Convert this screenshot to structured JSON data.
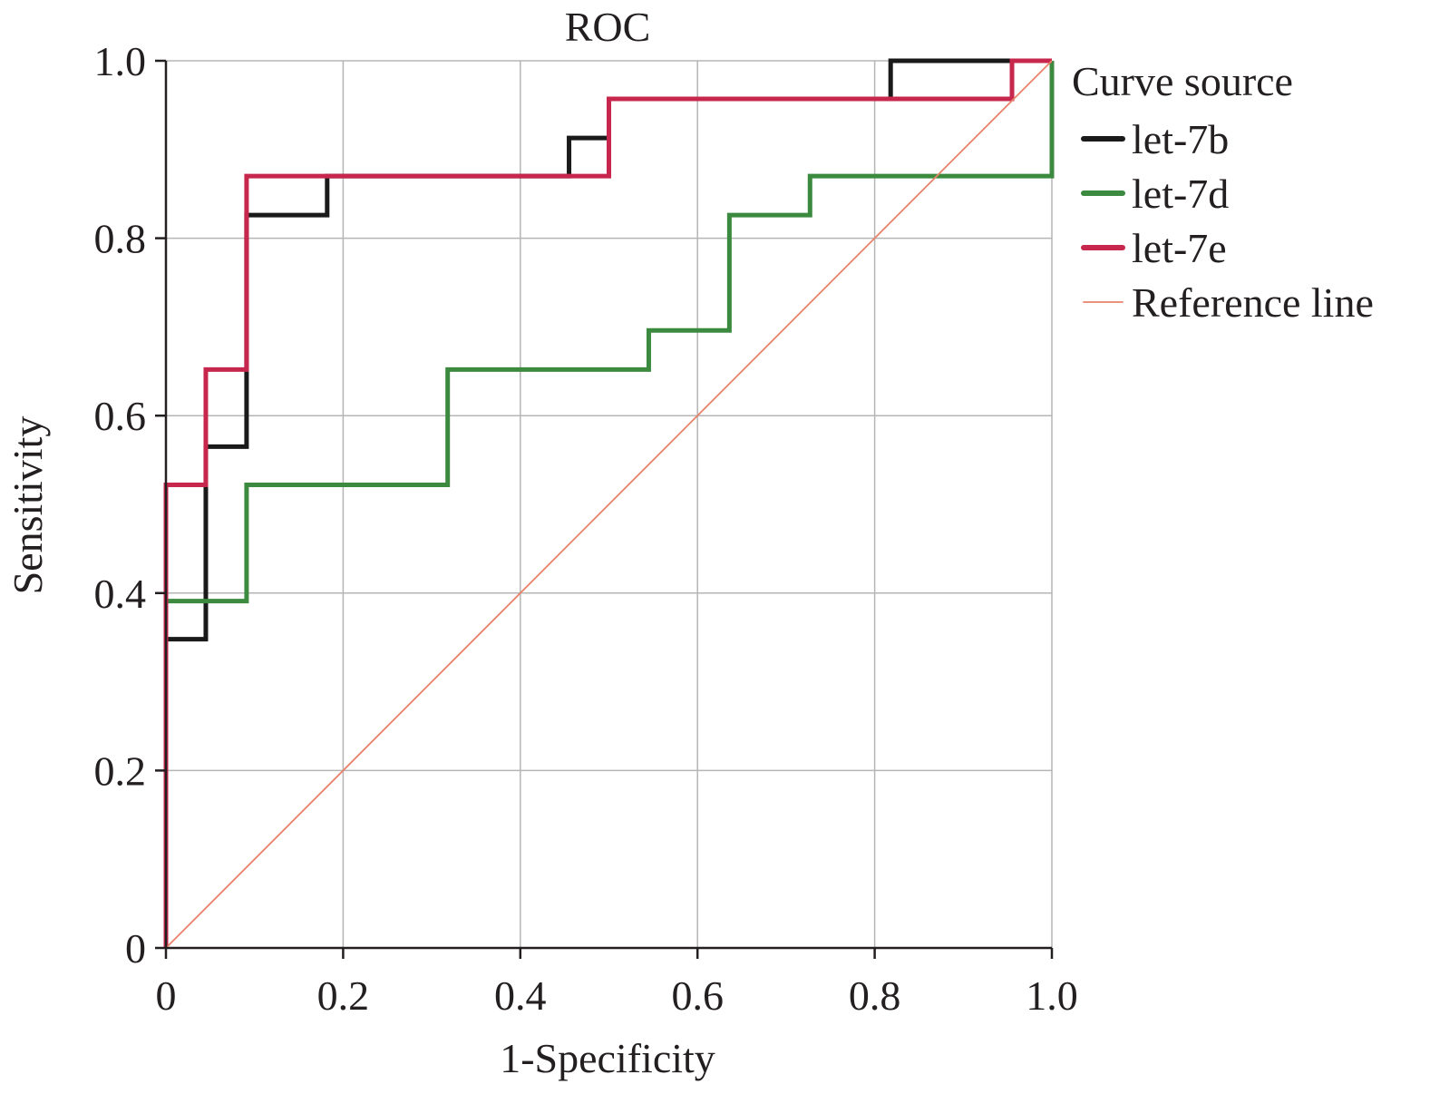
{
  "chart_data": {
    "type": "line",
    "title": "ROC",
    "xlabel": "1-Specificity",
    "ylabel": "Sensitivity",
    "xlim": [
      0,
      1
    ],
    "ylim": [
      0,
      1
    ],
    "x_ticks": [
      "0",
      "0.2",
      "0.4",
      "0.6",
      "0.8",
      "1.0"
    ],
    "y_ticks": [
      "0",
      "0.2",
      "0.4",
      "0.6",
      "0.8",
      "1.0"
    ],
    "grid": true,
    "legend": {
      "title": "Curve source",
      "placement": "right"
    },
    "series": [
      {
        "name": "let-7b",
        "color": "#1a1a1a",
        "step": true,
        "points": [
          [
            0,
            0
          ],
          [
            0,
            0.348
          ],
          [
            0.045,
            0.348
          ],
          [
            0.045,
            0.565
          ],
          [
            0.091,
            0.565
          ],
          [
            0.091,
            0.826
          ],
          [
            0.182,
            0.826
          ],
          [
            0.182,
            0.87
          ],
          [
            0.455,
            0.87
          ],
          [
            0.455,
            0.913
          ],
          [
            0.5,
            0.913
          ],
          [
            0.5,
            0.957
          ],
          [
            0.818,
            0.957
          ],
          [
            0.818,
            1.0
          ],
          [
            0.955,
            1.0
          ],
          [
            1.0,
            1.0
          ]
        ]
      },
      {
        "name": "let-7d",
        "color": "#3b8a3f",
        "step": true,
        "points": [
          [
            0,
            0
          ],
          [
            0,
            0.391
          ],
          [
            0.091,
            0.391
          ],
          [
            0.091,
            0.522
          ],
          [
            0.318,
            0.522
          ],
          [
            0.318,
            0.652
          ],
          [
            0.545,
            0.652
          ],
          [
            0.545,
            0.696
          ],
          [
            0.636,
            0.696
          ],
          [
            0.636,
            0.826
          ],
          [
            0.727,
            0.826
          ],
          [
            0.727,
            0.87
          ],
          [
            1.0,
            0.87
          ],
          [
            1.0,
            1.0
          ]
        ]
      },
      {
        "name": "let-7e",
        "color": "#c8274d",
        "step": true,
        "points": [
          [
            0,
            0
          ],
          [
            0,
            0.522
          ],
          [
            0.045,
            0.522
          ],
          [
            0.045,
            0.652
          ],
          [
            0.091,
            0.652
          ],
          [
            0.091,
            0.87
          ],
          [
            0.5,
            0.87
          ],
          [
            0.5,
            0.957
          ],
          [
            0.955,
            0.957
          ],
          [
            0.955,
            1.0
          ],
          [
            1.0,
            1.0
          ]
        ]
      },
      {
        "name": "Reference line",
        "color": "#e8826a",
        "step": false,
        "points": [
          [
            0,
            0
          ],
          [
            1,
            1
          ]
        ]
      }
    ]
  }
}
